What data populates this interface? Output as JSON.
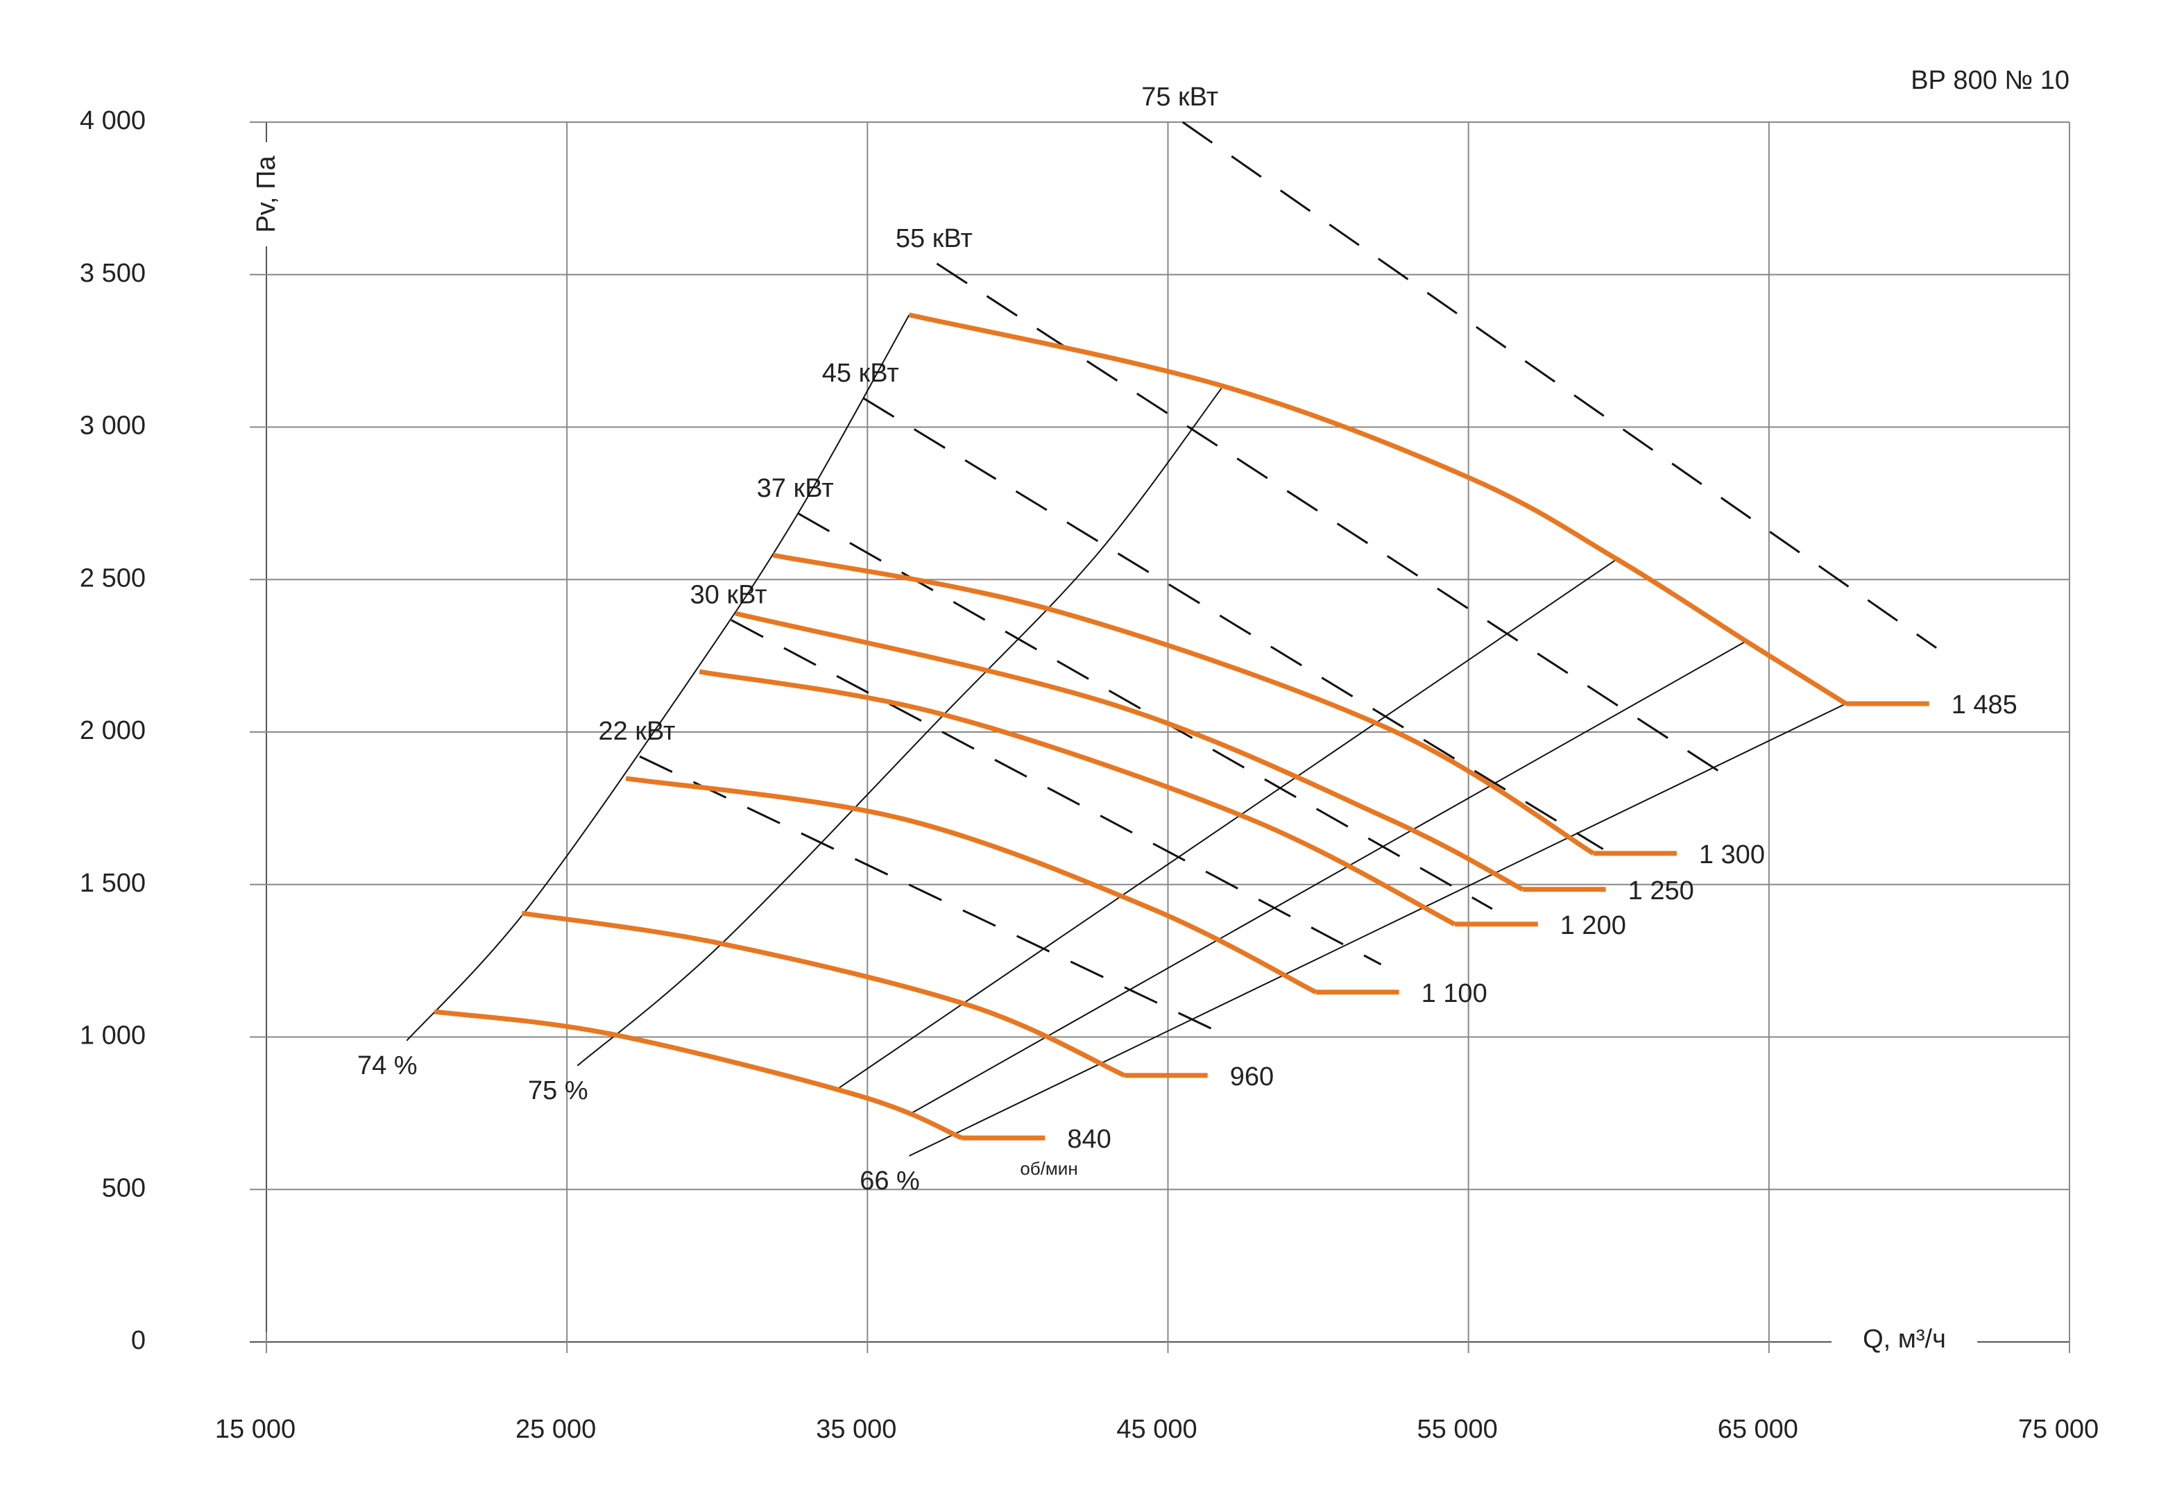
{
  "chart_data": {
    "type": "line",
    "title": "ВР 800  № 10",
    "y_label": "Pv, Па",
    "x_label": "Q, м³/ч",
    "rpm_unit": "об/мин",
    "xlim": [
      15000,
      75000
    ],
    "ylim": [
      0,
      4000
    ],
    "xticks": [
      {
        "value": 15000,
        "label": "15 000"
      },
      {
        "value": 25000,
        "label": "25 000"
      },
      {
        "value": 35000,
        "label": "35 000"
      },
      {
        "value": 45000,
        "label": "45 000"
      },
      {
        "value": 55000,
        "label": "55 000"
      },
      {
        "value": 65000,
        "label": "65 000"
      },
      {
        "value": 75000,
        "label": "75 000"
      }
    ],
    "yticks": [
      0,
      500,
      {
        "value": 1000,
        "label": "1 000"
      },
      {
        "value": 1500,
        "label": "1 500"
      },
      {
        "value": 2000,
        "label": "2 000"
      },
      {
        "value": 2500,
        "label": "2 500"
      },
      {
        "value": 3000,
        "label": "3 000"
      },
      {
        "value": 3500,
        "label": "3 500"
      },
      {
        "value": 4000,
        "label": "4 000"
      }
    ],
    "grid": true,
    "series": [
      {
        "name": "1 485",
        "color": "#e87722",
        "x": [
          36390,
          46780,
          55090,
          59940,
          64240,
          67560
        ],
        "y": [
          3368,
          3136,
          2831,
          2567,
          2298,
          2093
        ]
      },
      {
        "name": "1 300",
        "color": "#e87722",
        "x": [
          31860,
          41240,
          52320,
          59160
        ],
        "y": [
          2580,
          2398,
          2012,
          1602
        ]
      },
      {
        "name": "1 250",
        "color": "#e87722",
        "x": [
          30610,
          43080,
          52320,
          56800
        ],
        "y": [
          2389,
          2093,
          1716,
          1484
        ]
      },
      {
        "name": "1 200",
        "color": "#e87722",
        "x": [
          29410,
          37540,
          47700,
          54540
        ],
        "y": [
          2198,
          2057,
          1716,
          1370
        ]
      },
      {
        "name": "1 100",
        "color": "#e87722",
        "x": [
          26960,
          36150,
          44470,
          49920
        ],
        "y": [
          1848,
          1716,
          1420,
          1147
        ]
      },
      {
        "name": "960",
        "color": "#e87722",
        "x": [
          23500,
          30150,
          38470,
          43550
        ],
        "y": [
          1406,
          1306,
          1101,
          874
        ]
      },
      {
        "name": "840",
        "color": "#e87722",
        "x": [
          20590,
          26450,
          34770,
          38140
        ],
        "y": [
          1083,
          1010,
          806,
          669
        ]
      }
    ],
    "efficiency_lines": [
      {
        "label": "74 %",
        "x": [
          19670,
          23680,
          29230,
          32690,
          36390
        ],
        "y": [
          988,
          1420,
          2193,
          2717,
          3368
        ]
      },
      {
        "label": "75 %",
        "x": [
          25350,
          30150,
          37540,
          42620,
          46780
        ],
        "y": [
          906,
          1306,
          2057,
          2580,
          3127
        ]
      },
      {
        "x": [
          33980,
          59940
        ],
        "y": [
          828,
          2567
        ]
      },
      {
        "x": [
          36390,
          64240
        ],
        "y": [
          746,
          2298
        ]
      },
      {
        "label": "66 %",
        "x": [
          36390,
          67560
        ],
        "y": [
          610,
          2093
        ]
      }
    ],
    "power_lines": [
      {
        "label": "75 кВт",
        "x": [
          45490,
          70570
        ],
        "y": [
          4000,
          2276
        ]
      },
      {
        "label": "55 кВт",
        "x": [
          37310,
          63640
        ],
        "y": [
          3536,
          1852
        ]
      },
      {
        "label": "45 кВт",
        "x": [
          34860,
          59480
        ],
        "y": [
          3095,
          1616
        ]
      },
      {
        "label": "37 кВт",
        "x": [
          32690,
          55790
        ],
        "y": [
          2717,
          1420
        ]
      },
      {
        "label": "30 кВт",
        "x": [
          30470,
          52090
        ],
        "y": [
          2367,
          1238
        ]
      },
      {
        "label": "22 кВт",
        "x": [
          27420,
          47010
        ],
        "y": [
          1920,
          1001
        ]
      }
    ]
  }
}
